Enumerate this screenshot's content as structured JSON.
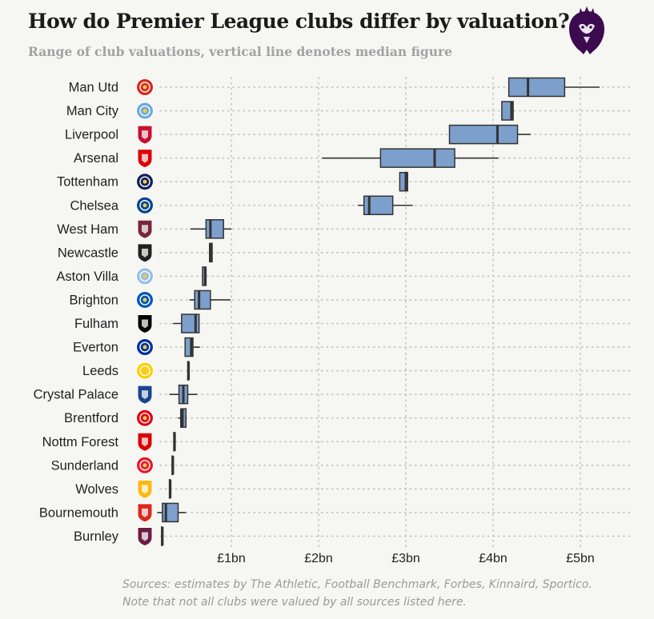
{
  "header": {
    "title": "How do Premier League clubs differ by valuation?",
    "subtitle": "Range of club valuations, vertical line denotes median figure"
  },
  "footer": {
    "line1": "Sources: estimates by The Athletic, Football Benchmark, Forbes, Kinnaird, Sportico.",
    "line2": "Note that not all clubs were valued by all sources listed here."
  },
  "logo": {
    "name": "premier-league-lion-icon",
    "color": "#3d0a4f"
  },
  "colors": {
    "box_fill": "#7d9fcc",
    "stroke": "#333333",
    "grid": "#c4c4c4"
  },
  "chart_data": {
    "type": "boxplot",
    "title": "How do Premier League clubs differ by valuation?",
    "subtitle": "Range of club valuations, vertical line denotes median figure",
    "xlabel": "",
    "ylabel": "",
    "x_unit": "£bn",
    "xlim": [
      0,
      5.45
    ],
    "x_ticks": [
      1,
      2,
      3,
      4,
      5
    ],
    "x_tick_labels": [
      "£1bn",
      "£2bn",
      "£3bn",
      "£4bn",
      "£5bn"
    ],
    "grid": "dotted horizontal and vertical",
    "clubs": [
      {
        "name": "Man Utd",
        "min": 4.18,
        "q1": 4.18,
        "median": 4.4,
        "q3": 4.82,
        "max": 5.22,
        "crest": "man-utd-crest-icon",
        "crest_color": "#da291c"
      },
      {
        "name": "Man City",
        "min": 4.1,
        "q1": 4.1,
        "median": 4.21,
        "q3": 4.23,
        "max": 4.23,
        "crest": "man-city-crest-icon",
        "crest_color": "#6cabdd"
      },
      {
        "name": "Liverpool",
        "min": 3.5,
        "q1": 3.5,
        "median": 4.05,
        "q3": 4.28,
        "max": 4.43,
        "crest": "liverpool-crest-icon",
        "crest_color": "#c8102e"
      },
      {
        "name": "Arsenal",
        "min": 2.04,
        "q1": 2.71,
        "median": 3.33,
        "q3": 3.56,
        "max": 4.06,
        "crest": "arsenal-crest-icon",
        "crest_color": "#db0007"
      },
      {
        "name": "Tottenham",
        "min": 2.93,
        "q1": 2.93,
        "median": 3.0,
        "q3": 3.02,
        "max": 3.02,
        "crest": "tottenham-crest-icon",
        "crest_color": "#132257"
      },
      {
        "name": "Chelsea",
        "min": 2.45,
        "q1": 2.52,
        "median": 2.58,
        "q3": 2.85,
        "max": 3.08,
        "crest": "chelsea-crest-icon",
        "crest_color": "#034694"
      },
      {
        "name": "West Ham",
        "min": 0.53,
        "q1": 0.71,
        "median": 0.76,
        "q3": 0.91,
        "max": 1.0,
        "crest": "west-ham-crest-icon",
        "crest_color": "#7a263a"
      },
      {
        "name": "Newcastle",
        "min": 0.75,
        "q1": 0.75,
        "median": 0.77,
        "q3": 0.78,
        "max": 0.78,
        "crest": "newcastle-crest-icon",
        "crest_color": "#241f20"
      },
      {
        "name": "Aston Villa",
        "min": 0.67,
        "q1": 0.67,
        "median": 0.7,
        "q3": 0.71,
        "max": 0.71,
        "crest": "aston-villa-crest-icon",
        "crest_color": "#95bfe5"
      },
      {
        "name": "Brighton",
        "min": 0.52,
        "q1": 0.58,
        "median": 0.63,
        "q3": 0.76,
        "max": 0.99,
        "crest": "brighton-crest-icon",
        "crest_color": "#0057b8"
      },
      {
        "name": "Fulham",
        "min": 0.33,
        "q1": 0.43,
        "median": 0.59,
        "q3": 0.63,
        "max": 0.63,
        "crest": "fulham-crest-icon",
        "crest_color": "#000000"
      },
      {
        "name": "Everton",
        "min": 0.47,
        "q1": 0.47,
        "median": 0.54,
        "q3": 0.56,
        "max": 0.64,
        "crest": "everton-crest-icon",
        "crest_color": "#003399"
      },
      {
        "name": "Leeds",
        "min": 0.5,
        "q1": 0.5,
        "median": 0.51,
        "q3": 0.51,
        "max": 0.51,
        "crest": "leeds-crest-icon",
        "crest_color": "#ffcd00"
      },
      {
        "name": "Crystal Palace",
        "min": 0.29,
        "q1": 0.4,
        "median": 0.45,
        "q3": 0.5,
        "max": 0.61,
        "crest": "crystal-palace-crest-icon",
        "crest_color": "#1b458f"
      },
      {
        "name": "Brentford",
        "min": 0.39,
        "q1": 0.42,
        "median": 0.44,
        "q3": 0.48,
        "max": 0.48,
        "crest": "brentford-crest-icon",
        "crest_color": "#e30613"
      },
      {
        "name": "Nottm Forest",
        "min": 0.34,
        "q1": 0.34,
        "median": 0.35,
        "q3": 0.35,
        "max": 0.35,
        "crest": "nottm-forest-crest-icon",
        "crest_color": "#dd0000"
      },
      {
        "name": "Sunderland",
        "min": 0.32,
        "q1": 0.32,
        "median": 0.33,
        "q3": 0.33,
        "max": 0.33,
        "crest": "sunderland-crest-icon",
        "crest_color": "#eb172b"
      },
      {
        "name": "Wolves",
        "min": 0.29,
        "q1": 0.29,
        "median": 0.3,
        "q3": 0.3,
        "max": 0.3,
        "crest": "wolves-crest-icon",
        "crest_color": "#fdb913"
      },
      {
        "name": "Bournemouth",
        "min": 0.15,
        "q1": 0.21,
        "median": 0.25,
        "q3": 0.39,
        "max": 0.48,
        "crest": "bournemouth-crest-icon",
        "crest_color": "#da291c"
      },
      {
        "name": "Burnley",
        "min": 0.2,
        "q1": 0.2,
        "median": 0.21,
        "q3": 0.21,
        "max": 0.21,
        "crest": "burnley-crest-icon",
        "crest_color": "#6c1d45"
      }
    ]
  }
}
